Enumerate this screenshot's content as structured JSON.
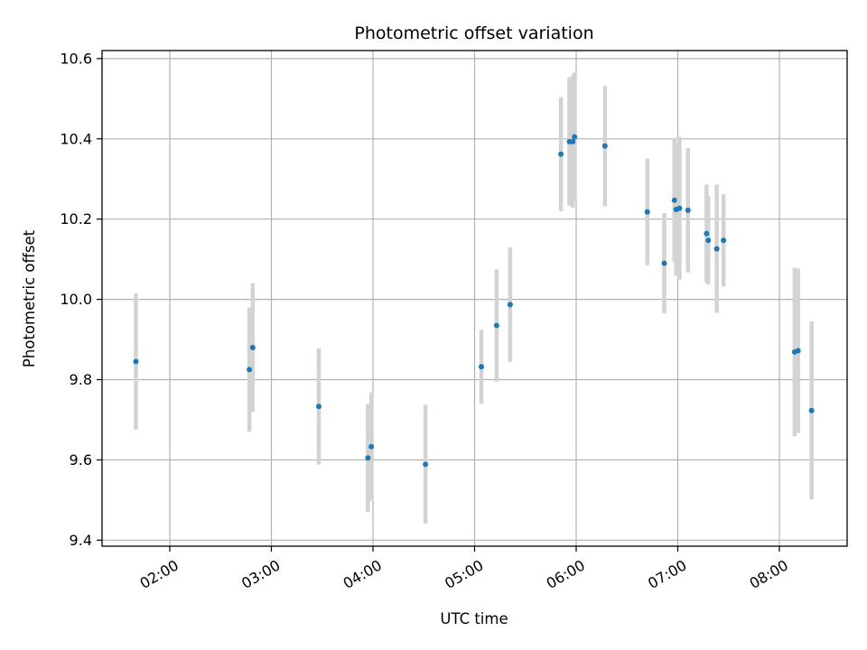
{
  "chart_data": {
    "type": "scatter",
    "title": "Photometric offset variation",
    "xlabel": "UTC time",
    "ylabel": "Photometric offset",
    "x_ticks": [
      "02:00",
      "03:00",
      "04:00",
      "05:00",
      "06:00",
      "07:00",
      "08:00"
    ],
    "y_ticks": [
      "9.4",
      "9.6",
      "9.8",
      "10.0",
      "10.2",
      "10.4",
      "10.6"
    ],
    "xlim": [
      "01:20",
      "08:40"
    ],
    "ylim": [
      9.385,
      10.62
    ],
    "grid": true,
    "series": [
      {
        "marker": "point",
        "color": "#1f77b4",
        "errorbar_color": "#d3d3d3",
        "points": [
          {
            "x": "01:40",
            "y": 9.845,
            "yerr": 0.17
          },
          {
            "x": "02:47",
            "y": 9.825,
            "yerr": 0.155
          },
          {
            "x": "02:49",
            "y": 9.88,
            "yerr": 0.16
          },
          {
            "x": "03:28",
            "y": 9.733,
            "yerr": 0.145
          },
          {
            "x": "03:57",
            "y": 9.605,
            "yerr": 0.135
          },
          {
            "x": "03:59",
            "y": 9.633,
            "yerr": 0.135
          },
          {
            "x": "04:31",
            "y": 9.589,
            "yerr": 0.148
          },
          {
            "x": "05:04",
            "y": 9.832,
            "yerr": 0.092
          },
          {
            "x": "05:13",
            "y": 9.935,
            "yerr": 0.14
          },
          {
            "x": "05:21",
            "y": 9.987,
            "yerr": 0.143
          },
          {
            "x": "05:51",
            "y": 10.362,
            "yerr": 0.142
          },
          {
            "x": "05:56",
            "y": 10.393,
            "yerr": 0.16
          },
          {
            "x": "05:58",
            "y": 10.393,
            "yerr": 0.165
          },
          {
            "x": "05:59",
            "y": 10.405,
            "yerr": 0.16
          },
          {
            "x": "06:17",
            "y": 10.382,
            "yerr": 0.15
          },
          {
            "x": "06:42",
            "y": 10.218,
            "yerr": 0.133
          },
          {
            "x": "06:52",
            "y": 10.09,
            "yerr": 0.125
          },
          {
            "x": "06:58",
            "y": 10.247,
            "yerr": 0.155
          },
          {
            "x": "06:59",
            "y": 10.224,
            "yerr": 0.165
          },
          {
            "x": "07:01",
            "y": 10.227,
            "yerr": 0.178
          },
          {
            "x": "07:06",
            "y": 10.222,
            "yerr": 0.155
          },
          {
            "x": "07:17",
            "y": 10.164,
            "yerr": 0.122
          },
          {
            "x": "07:18",
            "y": 10.147,
            "yerr": 0.11
          },
          {
            "x": "07:23",
            "y": 10.126,
            "yerr": 0.16
          },
          {
            "x": "07:27",
            "y": 10.147,
            "yerr": 0.115
          },
          {
            "x": "08:09",
            "y": 9.869,
            "yerr": 0.21
          },
          {
            "x": "08:11",
            "y": 9.872,
            "yerr": 0.205
          },
          {
            "x": "08:19",
            "y": 9.723,
            "yerr": 0.222
          }
        ]
      }
    ]
  }
}
